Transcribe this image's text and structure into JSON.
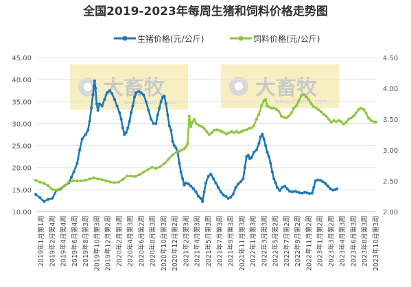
{
  "chart_data": {
    "type": "line",
    "title": "全国2019-2023年每周生猪和饲料价格走势图",
    "watermark_text": "www.dxumu.com",
    "watermark_brand": "大畜牧",
    "x_labels": [
      "2019年1月第1周",
      "2019年2月第4周",
      "2019年4月第4周",
      "2019年6月第4周",
      "2019年8月第3周",
      "2019年10月第3周",
      "2019年12月第2周",
      "2020年2月第3周",
      "2020年4月第3周",
      "2020年6月第2周",
      "2020年8月第3周",
      "2020年10月第3周",
      "2020年12月第2周",
      "2021年2月第3周",
      "2021年4月第3周",
      "2021年5月第3周",
      "2021年7月第3周",
      "2021年9月第3周",
      "2021年11月第3周",
      "2022年1月第3周",
      "2022年3月第3周",
      "2022年5月第2周",
      "2022年7月第2周",
      "2022年9月第2周",
      "2022年11月第2周",
      "2023年1月第2周",
      "2023年3月第2周",
      "2023年4月第3周",
      "2023年6月第3周",
      "2023年8月第3周",
      "2023年10月第3周"
    ],
    "y_left": {
      "min": 10,
      "max": 45,
      "ticks": [
        "10.00",
        "15.00",
        "20.00",
        "25.00",
        "30.00",
        "35.00",
        "40.00",
        "45.00"
      ]
    },
    "y_right": {
      "min": 2.0,
      "max": 4.5,
      "ticks": [
        "2.00",
        "2.50",
        "3.00",
        "3.50",
        "4.00",
        "4.50"
      ]
    },
    "series": [
      {
        "name": "生猪价格(元/公斤)",
        "axis": "left",
        "color": "#1f77b4",
        "points": [
          [
            0,
            13.9
          ],
          [
            0.5,
            13.2
          ],
          [
            1,
            12.3
          ],
          [
            1.5,
            12.8
          ],
          [
            2,
            13.0
          ],
          [
            2.5,
            14.8
          ],
          [
            3,
            15.1
          ],
          [
            3.5,
            15.9
          ],
          [
            4,
            16.5
          ],
          [
            4.3,
            17.8
          ],
          [
            4.6,
            19.0
          ],
          [
            5,
            21.0
          ],
          [
            5.3,
            24.0
          ],
          [
            5.6,
            26.5
          ],
          [
            6,
            27.5
          ],
          [
            6.3,
            28.5
          ],
          [
            6.5,
            30.5
          ],
          [
            6.7,
            33.5
          ],
          [
            6.9,
            36.5
          ],
          [
            7,
            38.5
          ],
          [
            7.1,
            39.7
          ],
          [
            7.2,
            38.0
          ],
          [
            7.35,
            34.5
          ],
          [
            7.5,
            33.0
          ],
          [
            7.7,
            34.5
          ],
          [
            8,
            34.0
          ],
          [
            8.3,
            35.5
          ],
          [
            8.6,
            37.0
          ],
          [
            8.9,
            37.5
          ],
          [
            9.2,
            36.8
          ],
          [
            9.5,
            35.5
          ],
          [
            9.8,
            34.0
          ],
          [
            10.1,
            32.5
          ],
          [
            10.3,
            31.0
          ],
          [
            10.5,
            29.0
          ],
          [
            10.7,
            27.5
          ],
          [
            10.9,
            28.0
          ],
          [
            11.1,
            29.0
          ],
          [
            11.3,
            30.5
          ],
          [
            11.5,
            32.5
          ],
          [
            11.7,
            34.0
          ],
          [
            11.9,
            36.0
          ],
          [
            12.1,
            37.0
          ],
          [
            12.4,
            37.3
          ],
          [
            12.7,
            37.0
          ],
          [
            13,
            36.5
          ],
          [
            13.3,
            35.0
          ],
          [
            13.6,
            33.0
          ],
          [
            13.9,
            31.0
          ],
          [
            14.2,
            30.0
          ],
          [
            14.5,
            30.0
          ],
          [
            14.7,
            32.0
          ],
          [
            14.9,
            33.5
          ],
          [
            15.1,
            35.0
          ],
          [
            15.3,
            36.0
          ],
          [
            15.5,
            36.2
          ],
          [
            15.7,
            34.5
          ],
          [
            15.9,
            32.0
          ],
          [
            16.1,
            29.5
          ],
          [
            16.3,
            28.5
          ],
          [
            16.5,
            26.0
          ],
          [
            16.7,
            25.0
          ],
          [
            16.9,
            24.5
          ],
          [
            17.1,
            23.5
          ],
          [
            17.3,
            21.0
          ],
          [
            17.5,
            19.0
          ],
          [
            17.7,
            17.5
          ],
          [
            17.9,
            16.0
          ],
          [
            18.1,
            16.5
          ],
          [
            18.4,
            16.3
          ],
          [
            18.7,
            15.8
          ],
          [
            19,
            15.2
          ],
          [
            19.3,
            14.5
          ],
          [
            19.6,
            13.5
          ],
          [
            19.9,
            13.0
          ],
          [
            20.1,
            12.3
          ],
          [
            20.3,
            14.5
          ],
          [
            20.5,
            16.5
          ],
          [
            20.8,
            18.0
          ],
          [
            21.1,
            18.5
          ],
          [
            21.4,
            17.5
          ],
          [
            21.7,
            16.5
          ],
          [
            22,
            15.5
          ],
          [
            22.3,
            14.5
          ],
          [
            22.6,
            13.8
          ],
          [
            22.9,
            13.5
          ],
          [
            23.2,
            13.0
          ],
          [
            23.5,
            13.3
          ],
          [
            23.8,
            14.0
          ],
          [
            24.1,
            15.5
          ],
          [
            24.4,
            16.3
          ],
          [
            24.7,
            16.8
          ],
          [
            25,
            17.5
          ],
          [
            25.2,
            20.0
          ],
          [
            25.4,
            22.5
          ],
          [
            25.6,
            22.8
          ],
          [
            25.8,
            22.0
          ],
          [
            26,
            22.3
          ],
          [
            26.3,
            23.5
          ],
          [
            26.6,
            24.0
          ],
          [
            26.9,
            25.5
          ],
          [
            27.1,
            27.0
          ],
          [
            27.3,
            27.6
          ],
          [
            27.5,
            26.5
          ],
          [
            27.7,
            25.0
          ],
          [
            27.9,
            23.5
          ],
          [
            28.1,
            22.5
          ],
          [
            28.3,
            21.0
          ],
          [
            28.5,
            19.0
          ],
          [
            28.7,
            17.5
          ],
          [
            28.9,
            16.5
          ],
          [
            29.1,
            15.5
          ],
          [
            29.4,
            14.8
          ],
          [
            29.7,
            15.5
          ],
          [
            30,
            15.8
          ],
          [
            30.3,
            15.2
          ],
          [
            30.6,
            14.6
          ],
          [
            30.9,
            14.5
          ],
          [
            31.2,
            14.6
          ],
          [
            31.5,
            14.5
          ],
          [
            31.8,
            14.3
          ],
          [
            32.1,
            14.2
          ],
          [
            32.4,
            14.4
          ],
          [
            32.7,
            14.3
          ],
          [
            33,
            14.1
          ],
          [
            33.3,
            14.2
          ],
          [
            33.5,
            15.5
          ],
          [
            33.7,
            17.0
          ],
          [
            34,
            17.2
          ],
          [
            34.3,
            17.1
          ],
          [
            34.6,
            16.8
          ],
          [
            34.9,
            16.4
          ],
          [
            35.2,
            15.8
          ],
          [
            35.5,
            15.2
          ],
          [
            35.8,
            14.9
          ],
          [
            36.1,
            15.0
          ],
          [
            36.3,
            15.2
          ]
        ]
      },
      {
        "name": "饲料价格(元/公斤)",
        "axis": "right",
        "color": "#8cc63f",
        "points": [
          [
            0,
            2.51
          ],
          [
            0.5,
            2.48
          ],
          [
            1,
            2.46
          ],
          [
            1.5,
            2.42
          ],
          [
            2,
            2.36
          ],
          [
            2.5,
            2.35
          ],
          [
            3,
            2.38
          ],
          [
            3.5,
            2.42
          ],
          [
            4,
            2.48
          ],
          [
            4.5,
            2.5
          ],
          [
            5,
            2.5
          ],
          [
            5.5,
            2.5
          ],
          [
            6,
            2.51
          ],
          [
            6.5,
            2.53
          ],
          [
            7,
            2.55
          ],
          [
            7.5,
            2.53
          ],
          [
            8,
            2.52
          ],
          [
            8.5,
            2.5
          ],
          [
            9,
            2.48
          ],
          [
            9.5,
            2.47
          ],
          [
            10,
            2.48
          ],
          [
            10.5,
            2.52
          ],
          [
            11,
            2.58
          ],
          [
            11.5,
            2.58
          ],
          [
            12,
            2.57
          ],
          [
            12.5,
            2.6
          ],
          [
            13,
            2.64
          ],
          [
            13.5,
            2.68
          ],
          [
            14,
            2.72
          ],
          [
            14.5,
            2.7
          ],
          [
            15,
            2.73
          ],
          [
            15.5,
            2.78
          ],
          [
            16,
            2.85
          ],
          [
            16.5,
            2.92
          ],
          [
            17,
            2.97
          ],
          [
            17.3,
            2.98
          ],
          [
            17.6,
            3.0
          ],
          [
            17.9,
            3.02
          ],
          [
            18.1,
            3.05
          ],
          [
            18.3,
            3.1
          ],
          [
            18.5,
            3.55
          ],
          [
            18.7,
            3.38
          ],
          [
            18.9,
            3.45
          ],
          [
            19.1,
            3.5
          ],
          [
            19.4,
            3.42
          ],
          [
            19.7,
            3.4
          ],
          [
            20,
            3.38
          ],
          [
            20.3,
            3.35
          ],
          [
            20.6,
            3.3
          ],
          [
            20.9,
            3.25
          ],
          [
            21.2,
            3.28
          ],
          [
            21.5,
            3.32
          ],
          [
            21.8,
            3.33
          ],
          [
            22.1,
            3.32
          ],
          [
            22.4,
            3.3
          ],
          [
            22.7,
            3.28
          ],
          [
            23,
            3.26
          ],
          [
            23.3,
            3.28
          ],
          [
            23.6,
            3.3
          ],
          [
            23.9,
            3.28
          ],
          [
            24.2,
            3.3
          ],
          [
            24.5,
            3.28
          ],
          [
            24.8,
            3.3
          ],
          [
            25.1,
            3.32
          ],
          [
            25.4,
            3.33
          ],
          [
            25.7,
            3.35
          ],
          [
            26,
            3.36
          ],
          [
            26.3,
            3.4
          ],
          [
            26.6,
            3.5
          ],
          [
            26.9,
            3.58
          ],
          [
            27.2,
            3.72
          ],
          [
            27.5,
            3.8
          ],
          [
            27.7,
            3.82
          ],
          [
            27.9,
            3.72
          ],
          [
            28.1,
            3.7
          ],
          [
            28.4,
            3.68
          ],
          [
            28.7,
            3.68
          ],
          [
            29,
            3.66
          ],
          [
            29.3,
            3.63
          ],
          [
            29.6,
            3.55
          ],
          [
            29.9,
            3.53
          ],
          [
            30.2,
            3.52
          ],
          [
            30.5,
            3.55
          ],
          [
            30.8,
            3.6
          ],
          [
            31.1,
            3.68
          ],
          [
            31.4,
            3.72
          ],
          [
            31.7,
            3.8
          ],
          [
            32,
            3.88
          ],
          [
            32.3,
            3.9
          ],
          [
            32.6,
            3.86
          ],
          [
            32.9,
            3.82
          ],
          [
            33.2,
            3.75
          ],
          [
            33.5,
            3.7
          ],
          [
            33.8,
            3.68
          ],
          [
            34.1,
            3.65
          ],
          [
            34.4,
            3.62
          ],
          [
            34.7,
            3.58
          ],
          [
            35,
            3.55
          ],
          [
            35.3,
            3.5
          ],
          [
            35.6,
            3.45
          ],
          [
            35.9,
            3.48
          ],
          [
            36.2,
            3.46
          ],
          [
            36.5,
            3.48
          ],
          [
            36.8,
            3.46
          ],
          [
            37.1,
            3.42
          ],
          [
            37.4,
            3.45
          ],
          [
            37.7,
            3.5
          ],
          [
            38,
            3.52
          ],
          [
            38.3,
            3.55
          ],
          [
            38.6,
            3.6
          ],
          [
            38.9,
            3.66
          ],
          [
            39.2,
            3.68
          ],
          [
            39.5,
            3.66
          ],
          [
            39.8,
            3.6
          ],
          [
            40.1,
            3.52
          ],
          [
            40.4,
            3.48
          ],
          [
            40.7,
            3.46
          ],
          [
            41,
            3.45
          ]
        ]
      }
    ]
  }
}
